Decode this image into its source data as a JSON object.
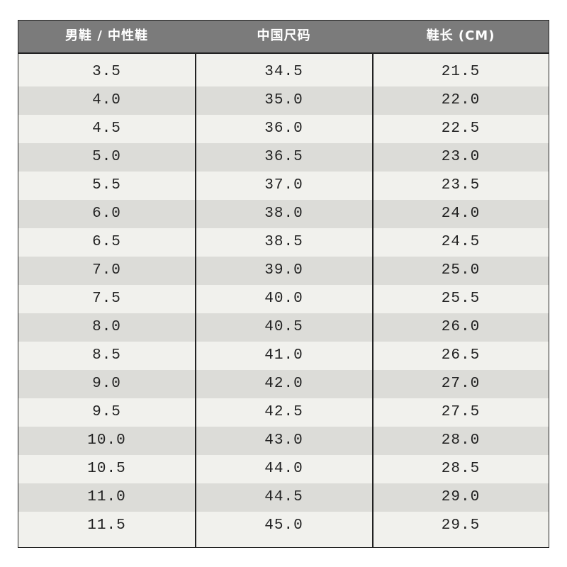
{
  "table": {
    "header": [
      "男鞋 / 中性鞋",
      "中国尺码",
      "鞋长 (CM)"
    ],
    "rows": [
      [
        "3.5",
        "34.5",
        "21.5"
      ],
      [
        "4.0",
        "35.0",
        "22.0"
      ],
      [
        "4.5",
        "36.0",
        "22.5"
      ],
      [
        "5.0",
        "36.5",
        "23.0"
      ],
      [
        "5.5",
        "37.0",
        "23.5"
      ],
      [
        "6.0",
        "38.0",
        "24.0"
      ],
      [
        "6.5",
        "38.5",
        "24.5"
      ],
      [
        "7.0",
        "39.0",
        "25.0"
      ],
      [
        "7.5",
        "40.0",
        "25.5"
      ],
      [
        "8.0",
        "40.5",
        "26.0"
      ],
      [
        "8.5",
        "41.0",
        "26.5"
      ],
      [
        "9.0",
        "42.0",
        "27.0"
      ],
      [
        "9.5",
        "42.5",
        "27.5"
      ],
      [
        "10.0",
        "43.0",
        "28.0"
      ],
      [
        "10.5",
        "44.0",
        "28.5"
      ],
      [
        "11.0",
        "44.5",
        "29.0"
      ],
      [
        "11.5",
        "45.0",
        "29.5"
      ]
    ]
  }
}
